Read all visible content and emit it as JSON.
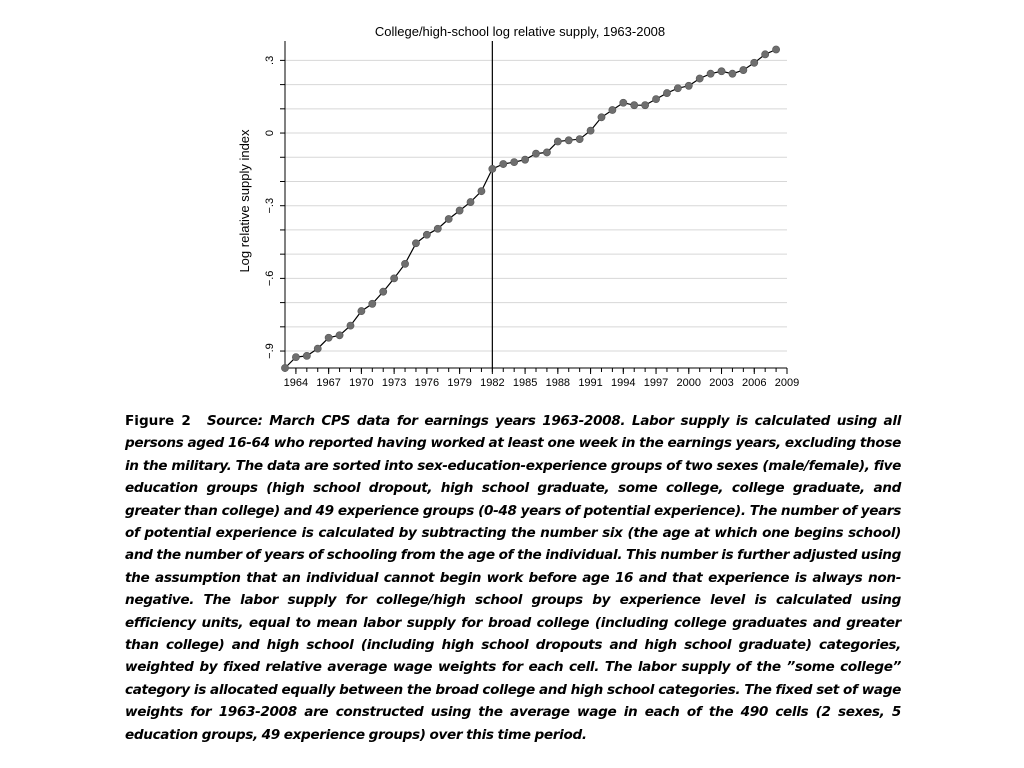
{
  "chart_data": {
    "type": "line",
    "title": "College/high-school log relative supply, 1963-2008",
    "xlabel": "",
    "ylabel": "Log relative supply index",
    "xlim": [
      1963,
      2009
    ],
    "ylim": [
      -0.97,
      0.38
    ],
    "x_ticks": [
      1964,
      1967,
      1970,
      1973,
      1976,
      1979,
      1982,
      1985,
      1988,
      1991,
      1994,
      1997,
      2000,
      2003,
      2006,
      2009
    ],
    "x_tick_labels": [
      "1964",
      "1967",
      "1970",
      "1973",
      "1976",
      "1979",
      "1982",
      "1985",
      "1988",
      "1991",
      "1994",
      "1997",
      "2000",
      "2003",
      "2006",
      "2009"
    ],
    "y_ticks": [
      -0.9,
      -0.6,
      -0.3,
      0,
      0.3
    ],
    "y_tick_labels": [
      "−.9",
      "−.6",
      "−.3",
      "0",
      ".3"
    ],
    "vline_x": 1982,
    "grid": true,
    "series": [
      {
        "x": [
          1963,
          1964,
          1965,
          1966,
          1967,
          1968,
          1969,
          1970,
          1971,
          1972,
          1973,
          1974,
          1975,
          1976,
          1977,
          1978,
          1979,
          1980,
          1981,
          1982,
          1983,
          1984,
          1985,
          1986,
          1987,
          1988,
          1989,
          1990,
          1991,
          1992,
          1993,
          1994,
          1995,
          1996,
          1997,
          1998,
          1999,
          2000,
          2001,
          2002,
          2003,
          2004,
          2005,
          2006,
          2007,
          2008
        ],
        "values": [
          -0.97,
          -0.925,
          -0.92,
          -0.89,
          -0.845,
          -0.835,
          -0.795,
          -0.735,
          -0.705,
          -0.655,
          -0.6,
          -0.54,
          -0.455,
          -0.42,
          -0.395,
          -0.355,
          -0.32,
          -0.285,
          -0.24,
          -0.148,
          -0.128,
          -0.12,
          -0.11,
          -0.085,
          -0.08,
          -0.035,
          -0.03,
          -0.025,
          0.01,
          0.065,
          0.095,
          0.125,
          0.115,
          0.115,
          0.14,
          0.165,
          0.185,
          0.195,
          0.225,
          0.245,
          0.255,
          0.245,
          0.26,
          0.29,
          0.325,
          0.345
        ]
      }
    ]
  },
  "caption": {
    "label": "Figure 2",
    "text": "Source: March CPS data for earnings years 1963-2008. Labor supply is calculated using all persons aged 16-64 who reported having worked at least one week in the earnings years, excluding those in the military. The data are sorted into sex-education-experience groups of two sexes (male/female), five education groups (high school dropout, high school graduate, some college, college graduate, and greater than college) and 49 experience groups (0-48 years of potential experience). The number of years of potential experience is calculated by subtracting the number six (the age at which one begins school) and the number of years of schooling from the age of the individual. This number is further adjusted using the assumption that an individual cannot begin work before age 16 and that experience is always non-negative. The labor supply for college/high school groups by experience level is calculated using efficiency units, equal to mean labor supply for broad college (including college graduates and greater than college) and high school (including high school dropouts and high school graduate) categories, weighted by fixed relative average wage weights for each cell. The labor supply of the ”some college” category is allocated equally between the broad college and high school categories. The fixed set of wage weights for 1963-2008 are constructed using the average wage in each of the 490 cells (2 sexes, 5 education groups, 49 experience groups) over this time period."
  },
  "colors": {
    "line": "#000000",
    "marker": "#6e6e6e",
    "grid": "#d7d7d7",
    "axis": "#000000"
  }
}
